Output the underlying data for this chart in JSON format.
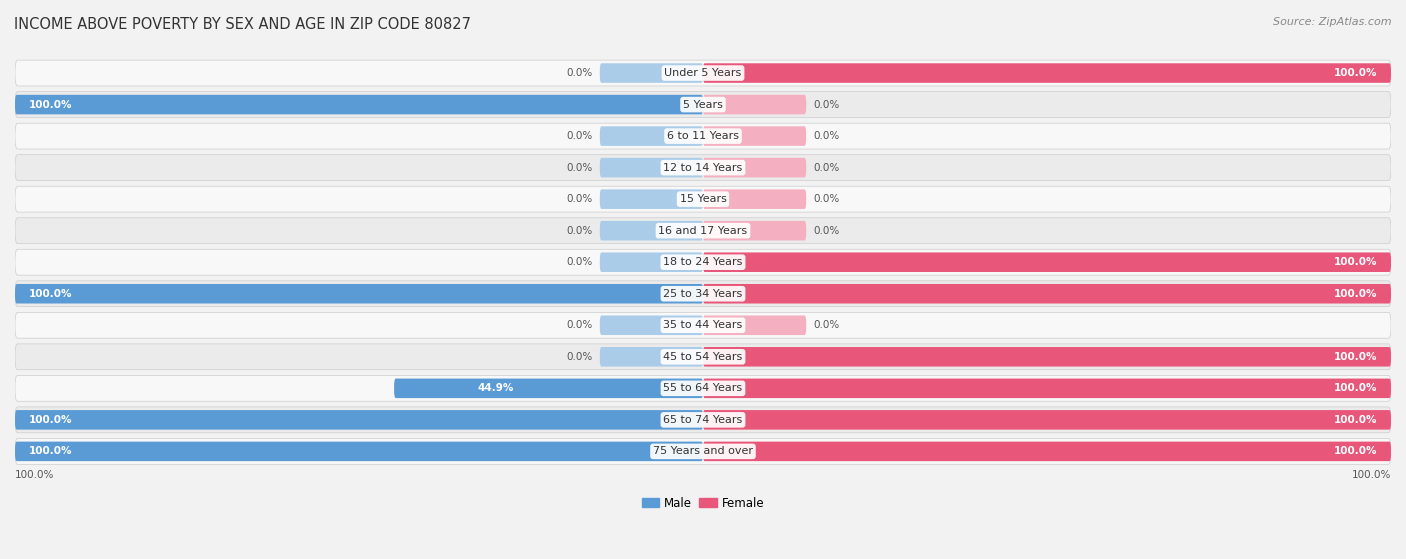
{
  "title": "INCOME ABOVE POVERTY BY SEX AND AGE IN ZIP CODE 80827",
  "source": "Source: ZipAtlas.com",
  "categories": [
    "Under 5 Years",
    "5 Years",
    "6 to 11 Years",
    "12 to 14 Years",
    "15 Years",
    "16 and 17 Years",
    "18 to 24 Years",
    "25 to 34 Years",
    "35 to 44 Years",
    "45 to 54 Years",
    "55 to 64 Years",
    "65 to 74 Years",
    "75 Years and over"
  ],
  "male_values": [
    0.0,
    100.0,
    0.0,
    0.0,
    0.0,
    0.0,
    0.0,
    100.0,
    0.0,
    0.0,
    44.9,
    100.0,
    100.0
  ],
  "female_values": [
    100.0,
    0.0,
    0.0,
    0.0,
    0.0,
    0.0,
    100.0,
    100.0,
    0.0,
    100.0,
    100.0,
    100.0,
    100.0
  ],
  "male_color_full": "#5b9bd5",
  "male_color_zero": "#aacce8",
  "female_color_full": "#e8567a",
  "female_color_zero": "#f4afc0",
  "male_label": "Male",
  "female_label": "Female",
  "bg_color": "#f2f2f2",
  "row_color_odd": "#f9f9f9",
  "row_color_even": "#efefef",
  "bar_height": 0.62,
  "title_fontsize": 10.5,
  "value_fontsize": 7.5,
  "category_fontsize": 8.0,
  "legend_fontsize": 8.5
}
